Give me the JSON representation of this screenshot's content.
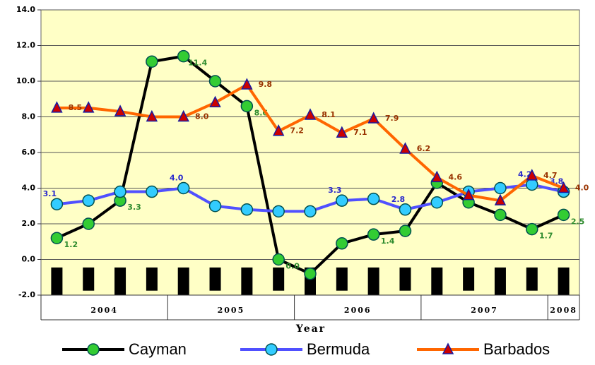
{
  "chart_data": {
    "type": "line",
    "x_label": "Year",
    "categories": [
      null,
      null,
      null,
      null,
      null,
      null,
      null,
      null,
      null,
      null,
      null,
      null,
      null,
      null,
      null,
      null,
      null
    ],
    "x_groups": [
      {
        "label": "2004",
        "count": 4
      },
      {
        "label": "2005",
        "count": 4
      },
      {
        "label": "2006",
        "count": 4
      },
      {
        "label": "2007",
        "count": 4
      },
      {
        "label": "2008",
        "count": 1
      }
    ],
    "ylim": [
      -2,
      14
    ],
    "yticks": [
      {
        "value": -2,
        "label": "-2.0"
      },
      {
        "value": 0,
        "label": "0.0"
      },
      {
        "value": 2,
        "label": "2.0"
      },
      {
        "value": 4,
        "label": "4.0"
      },
      {
        "value": 6,
        "label": "6.0"
      },
      {
        "value": 8,
        "label": "8.0"
      },
      {
        "value": 10,
        "label": "10.0"
      },
      {
        "value": 12,
        "label": "12.0"
      },
      {
        "value": 14,
        "label": "14.0"
      }
    ],
    "grid": true,
    "legend": "bottom",
    "series": [
      {
        "name": "Cayman",
        "color": "#000000",
        "marker": "circle",
        "marker_color": "#33cc33",
        "label_color": "#2e8b2e",
        "values": [
          1.2,
          2.0,
          3.3,
          11.1,
          11.4,
          10.0,
          8.6,
          0.0,
          -0.8,
          0.9,
          1.4,
          1.6,
          4.3,
          3.2,
          2.5,
          1.7,
          2.5
        ],
        "value_labels": [
          "1.2",
          null,
          "3.3",
          null,
          "11.4",
          null,
          "8.6",
          "0.0",
          null,
          null,
          "1.4",
          null,
          null,
          null,
          null,
          "1.7",
          "2.5"
        ]
      },
      {
        "name": "Bermuda",
        "color": "#5050ff",
        "marker": "circle",
        "marker_color": "#33ccff",
        "label_color": "#2a2acc",
        "values": [
          3.1,
          3.3,
          3.8,
          3.8,
          4.0,
          3.0,
          2.8,
          2.7,
          2.7,
          3.3,
          3.4,
          2.8,
          3.2,
          3.8,
          4.0,
          4.2,
          3.8
        ],
        "value_labels": [
          "3.1",
          null,
          null,
          null,
          "4.0",
          null,
          null,
          null,
          null,
          "3.3",
          null,
          "2.8",
          null,
          null,
          null,
          "4.2",
          "3.8"
        ]
      },
      {
        "name": "Barbados",
        "color": "#ff6600",
        "marker": "triangle",
        "marker_color": "#cc0000",
        "label_color": "#993300",
        "values": [
          8.5,
          8.5,
          8.3,
          8.0,
          8.0,
          8.8,
          9.8,
          7.2,
          8.1,
          7.1,
          7.9,
          6.2,
          4.6,
          3.6,
          3.3,
          4.7,
          4.0
        ],
        "value_labels": [
          "8.5",
          null,
          null,
          null,
          "8.0",
          null,
          "9.8",
          "7.2",
          "8.1",
          "7.1",
          "7.9",
          "6.2",
          "4.6",
          null,
          null,
          "4.7",
          "4.0"
        ]
      }
    ]
  }
}
